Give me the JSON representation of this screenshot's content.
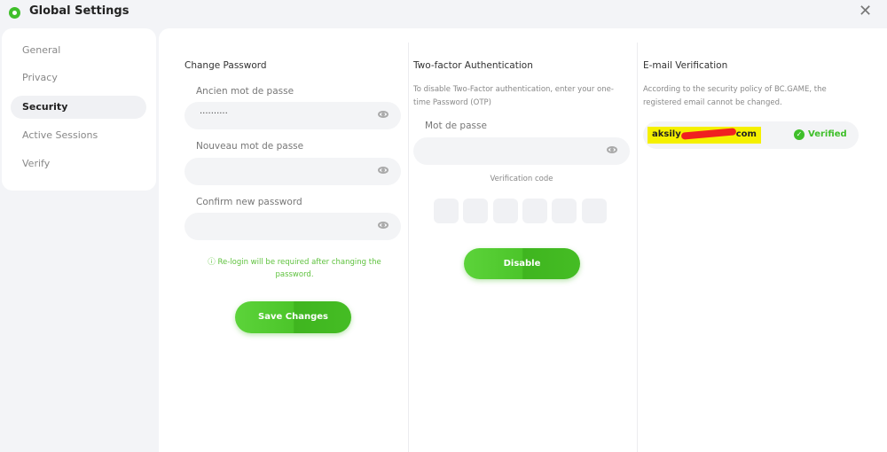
{
  "window": {
    "title": "Global Settings",
    "close_icon": "close-icon"
  },
  "colors": {
    "accent": "#4cc52a",
    "verified": "#3fbf2a"
  },
  "sidebar": {
    "items": [
      {
        "label": "General",
        "active": false
      },
      {
        "label": "Privacy",
        "active": false
      },
      {
        "label": "Security",
        "active": true
      },
      {
        "label": "Active Sessions",
        "active": false
      },
      {
        "label": "Verify",
        "active": false
      }
    ]
  },
  "change_password": {
    "title": "Change Password",
    "old_label": "Ancien mot de passe",
    "old_value": "··········",
    "new_label": "Nouveau mot de passe",
    "new_value": "",
    "confirm_label": "Confirm new password",
    "confirm_value": "",
    "note": "Re-login will be required after changing the password.",
    "save": "Save Changes"
  },
  "two_factor": {
    "title": "Two-factor Authentication",
    "description": "To disable Two-Factor authentication, enter your one-time Password (OTP)",
    "password_label": "Mot de passe",
    "password_value": "",
    "code_label": "Verification code",
    "disable": "Disable"
  },
  "email": {
    "title": "E-mail Verification",
    "description": "According to the security policy of BC.GAME, the registered email cannot be changed.",
    "email_start": "aksily",
    "email_end": "com",
    "status": "Verified"
  }
}
